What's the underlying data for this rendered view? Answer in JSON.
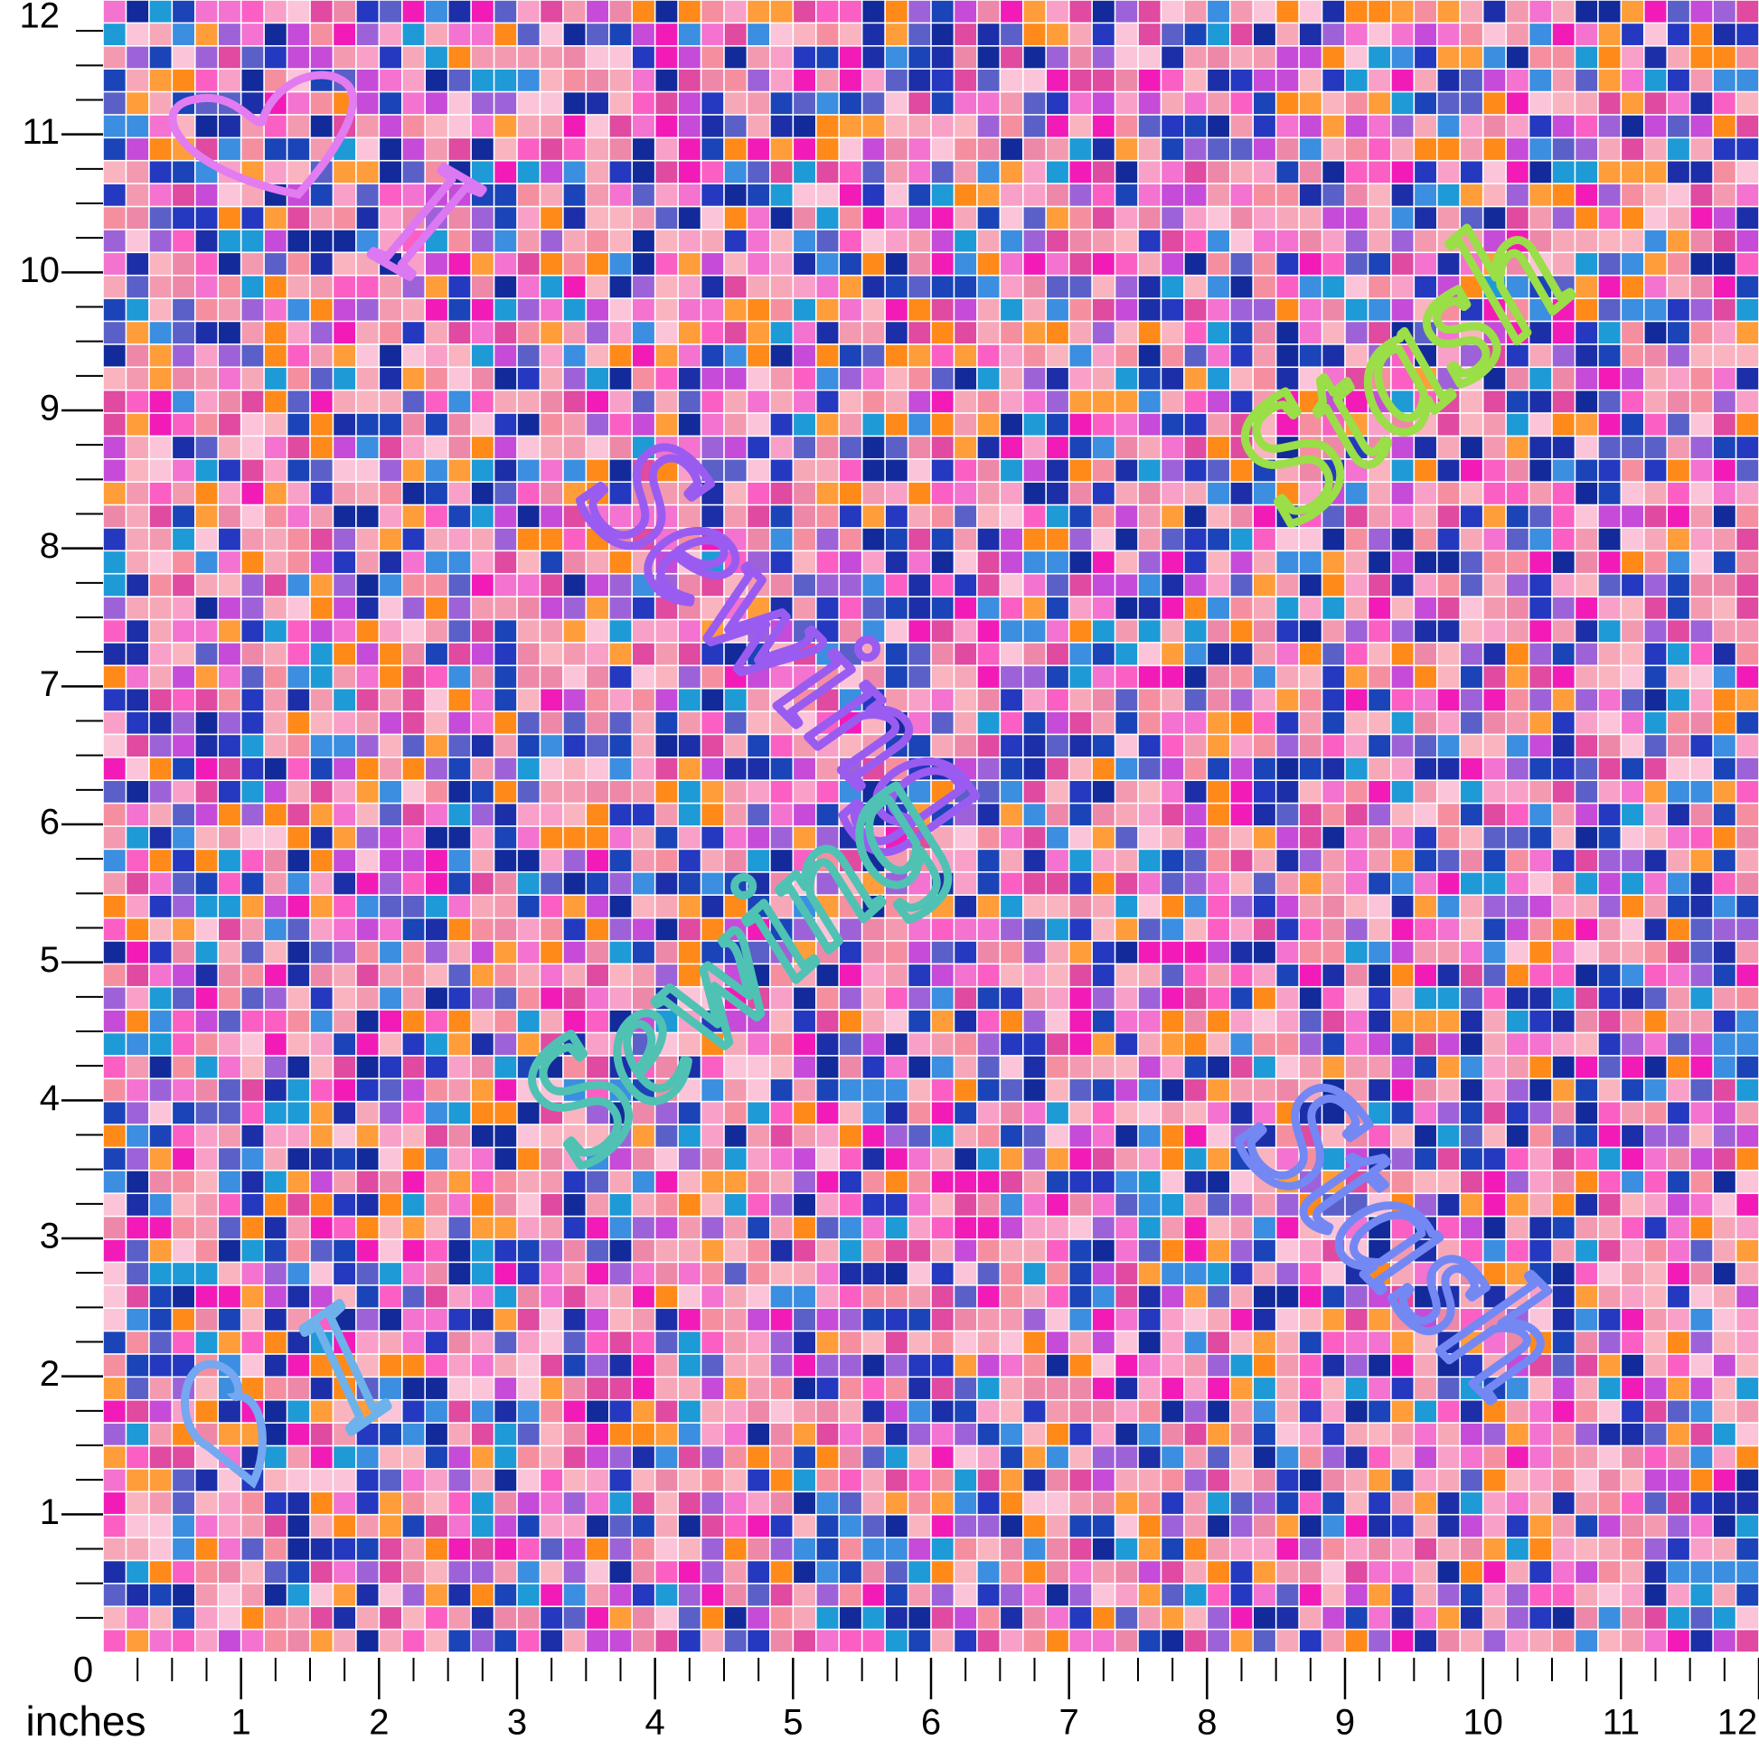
{
  "ruler": {
    "origin": "0",
    "unit": "inches",
    "x_ticks": [
      1,
      2,
      3,
      4,
      5,
      6,
      7,
      8,
      9,
      10,
      11,
      12
    ],
    "y_ticks": [
      1,
      2,
      3,
      4,
      5,
      6,
      7,
      8,
      9,
      10,
      11,
      12
    ]
  },
  "script_text": [
    "I",
    "Sewing",
    "Stash",
    "I",
    "Sewing",
    "Stash"
  ]
}
